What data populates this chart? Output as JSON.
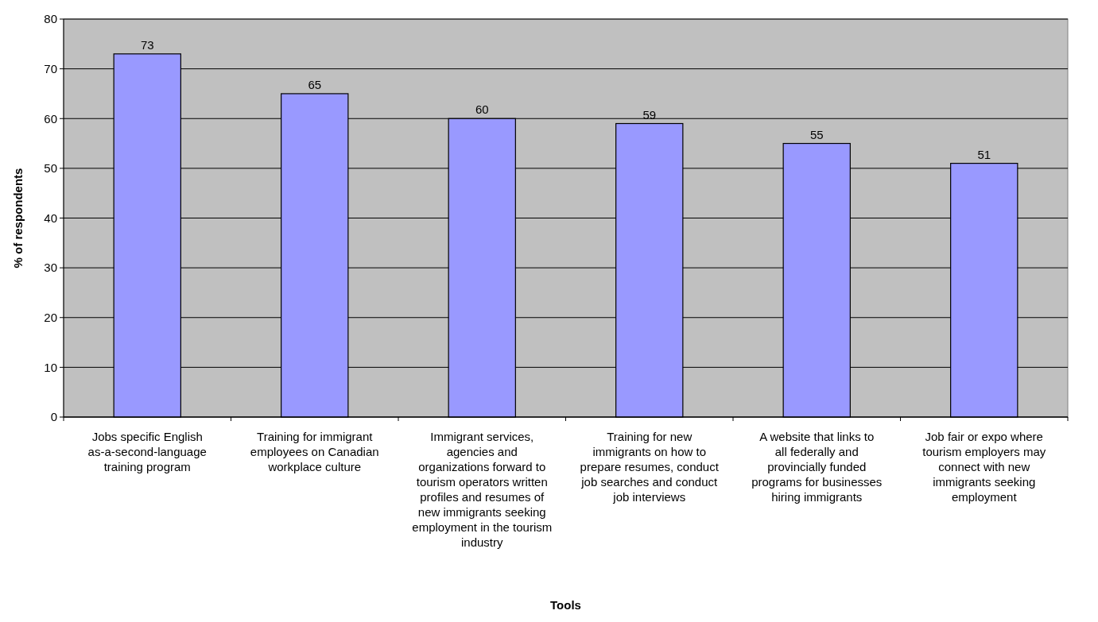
{
  "chart_data": {
    "type": "bar",
    "xlabel": "Tools",
    "ylabel": "% of respondents",
    "categories": [
      "Jobs specific English as-a-second-language training program",
      "Training for immigrant employees on Canadian workplace culture",
      "Immigrant services, agencies and organizations forward to tourism operators written profiles and resumes of new immigrants seeking employment in the tourism industry",
      "Training for new immigrants on how to prepare resumes, conduct job searches and conduct job interviews",
      "A website that links to all federally and provincially funded programs for businesses hiring immigrants",
      "Job fair or expo where tourism employers may connect with new immigrants seeking employment"
    ],
    "values": [
      73,
      65,
      60,
      59,
      55,
      51
    ],
    "color": "#9999ff",
    "data_labels": true,
    "grid": "y",
    "ylim": [
      0,
      80
    ],
    "yticks": [
      0,
      10,
      20,
      30,
      40,
      50,
      60,
      70,
      80
    ]
  }
}
